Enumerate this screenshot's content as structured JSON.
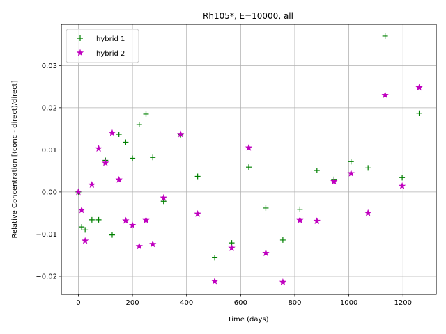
{
  "chart_data": {
    "type": "scatter",
    "title": "Rh105*, E=10000, all",
    "xlabel": "Time (days)",
    "ylabel": "Relative Concentration [(conc - direct)/direct]",
    "xlim": [
      -63,
      1323
    ],
    "ylim": [
      -0.0243,
      0.0398
    ],
    "xticks": [
      0,
      200,
      400,
      600,
      800,
      1000,
      1200
    ],
    "yticks": [
      -0.02,
      -0.01,
      0.0,
      0.01,
      0.02,
      0.03
    ],
    "ytick_labels": [
      "−0.02",
      "−0.01",
      "0.00",
      "0.01",
      "0.02",
      "0.03"
    ],
    "grid": true,
    "legend_position": "top-left",
    "series": [
      {
        "name": "hybrid 1",
        "marker": "plus",
        "color": "#008000",
        "points": [
          [
            0,
            0.0
          ],
          [
            12,
            -0.0083
          ],
          [
            25,
            -0.009
          ],
          [
            50,
            -0.0066
          ],
          [
            75,
            -0.0066
          ],
          [
            100,
            0.0075
          ],
          [
            125,
            -0.0102
          ],
          [
            150,
            0.0137
          ],
          [
            175,
            0.0118
          ],
          [
            200,
            0.008
          ],
          [
            225,
            0.016
          ],
          [
            250,
            0.0185
          ],
          [
            275,
            0.0082
          ],
          [
            315,
            -0.0022
          ],
          [
            378,
            0.0136
          ],
          [
            441,
            0.0037
          ],
          [
            504,
            -0.0156
          ],
          [
            567,
            -0.0121
          ],
          [
            630,
            0.0059
          ],
          [
            693,
            -0.0038
          ],
          [
            756,
            -0.0114
          ],
          [
            819,
            -0.0041
          ],
          [
            882,
            0.0051
          ],
          [
            945,
            0.003
          ],
          [
            1008,
            0.0072
          ],
          [
            1071,
            0.0057
          ],
          [
            1134,
            0.037
          ],
          [
            1197,
            0.0034
          ],
          [
            1260,
            0.0187
          ]
        ]
      },
      {
        "name": "hybrid 2",
        "marker": "star",
        "color": "#bf00bf",
        "points": [
          [
            0,
            0.0
          ],
          [
            12,
            -0.0043
          ],
          [
            25,
            -0.0116
          ],
          [
            50,
            0.0017
          ],
          [
            75,
            0.0103
          ],
          [
            100,
            0.0069
          ],
          [
            125,
            0.014
          ],
          [
            150,
            0.0029
          ],
          [
            175,
            -0.0068
          ],
          [
            200,
            -0.0079
          ],
          [
            225,
            -0.0129
          ],
          [
            250,
            -0.0067
          ],
          [
            275,
            -0.0124
          ],
          [
            315,
            -0.0014
          ],
          [
            378,
            0.0137
          ],
          [
            441,
            -0.0052
          ],
          [
            504,
            -0.0212
          ],
          [
            567,
            -0.0133
          ],
          [
            630,
            0.0105
          ],
          [
            693,
            -0.0145
          ],
          [
            756,
            -0.0214
          ],
          [
            819,
            -0.0067
          ],
          [
            882,
            -0.0069
          ],
          [
            945,
            0.0025
          ],
          [
            1008,
            0.0044
          ],
          [
            1071,
            -0.005
          ],
          [
            1134,
            0.023
          ],
          [
            1197,
            0.0014
          ],
          [
            1260,
            0.0248
          ]
        ]
      }
    ]
  }
}
